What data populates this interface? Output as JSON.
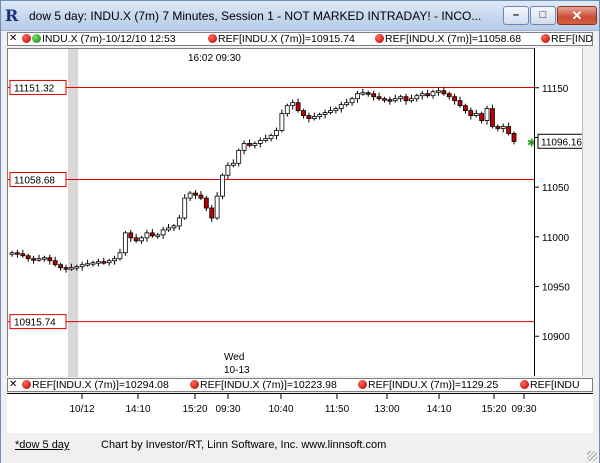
{
  "window": {
    "title": "dow 5 day: INDU.X (7m) 7 Minutes, Session 1 - NOT MARKED INTRADAY! - INCO...",
    "icon": "R",
    "min_glyph": "–",
    "max_glyph": "□",
    "close_glyph": "✕"
  },
  "top_bar": {
    "close_glyph": "✕",
    "segments": [
      {
        "dot": "green",
        "text": "INDU.X (7m)-10/12/10 12:53"
      },
      {
        "dot": "red",
        "text": "REF[INDU.X (7m)]=10915.74"
      },
      {
        "dot": "red",
        "text": "REF[INDU.X (7m)]=11058.68"
      },
      {
        "dot": "red",
        "text": "REF[INDU"
      }
    ]
  },
  "bottom_bar": {
    "close_glyph": "✕",
    "segments": [
      {
        "dot": "red",
        "text": "REF[INDU.X (7m)]=10294.08"
      },
      {
        "dot": "red",
        "text": "REF[INDU.X (7m)]=10223.98"
      },
      {
        "dot": "red",
        "text": "REF[INDU.X (7m)]=1129.25"
      },
      {
        "dot": "red",
        "text": "REF[INDU"
      }
    ]
  },
  "chart": {
    "cursor_label": "16:02  09:30",
    "day_label": "Wed",
    "date_label": "10-13",
    "last_price": "11096.16",
    "colors": {
      "ref_line": "#e00000",
      "candle": "#000000",
      "down_fill": "#c00000",
      "last_marker": "#2a9a2a"
    }
  },
  "footer": {
    "tab": "*dow 5 day",
    "credit": "Chart by Investor/RT, Linn Software, Inc. www.linnsoft.com"
  },
  "chart_data": {
    "type": "candlestick",
    "ylim": [
      10860,
      11190
    ],
    "y_ticks": [
      11150,
      11100,
      11050,
      11000,
      10950,
      10900
    ],
    "x_tick_labels": [
      "10/12",
      "14:10",
      "15:20",
      "09:30",
      "10:40",
      "11:50",
      "13:00",
      "14:10",
      "15:20",
      "09:30"
    ],
    "ref_lines": [
      {
        "label": "11151.32",
        "value": 11151.32
      },
      {
        "label": "11058.68",
        "value": 11058.68
      },
      {
        "label": "10915.74",
        "value": 10915.74
      }
    ],
    "last_value": 11096.16,
    "close": [
      10985,
      10984,
      10982,
      10979,
      10978,
      10979,
      10980,
      10977,
      10973,
      10970,
      10969,
      10970,
      10971,
      10973,
      10974,
      10975,
      10976,
      10975,
      10977,
      10979,
      10985,
      11005,
      11000,
      10997,
      11000,
      11005,
      11002,
      11003,
      11008,
      11010,
      11012,
      11020,
      11040,
      11045,
      11043,
      11040,
      11030,
      11020,
      11042,
      11063,
      11073,
      11075,
      11088,
      11095,
      11093,
      11095,
      11098,
      11100,
      11103,
      11108,
      11125,
      11133,
      11136,
      11128,
      11123,
      11120,
      11122,
      11124,
      11126,
      11128,
      11130,
      11134,
      11136,
      11140,
      11145,
      11146,
      11145,
      11142,
      11140,
      11139,
      11138,
      11140,
      11142,
      11138,
      11140,
      11143,
      11145,
      11143,
      11147,
      11148,
      11145,
      11142,
      11138,
      11133,
      11128,
      11123,
      11125,
      11118,
      11130,
      11112,
      11110,
      11112,
      11105,
      11097
    ]
  }
}
